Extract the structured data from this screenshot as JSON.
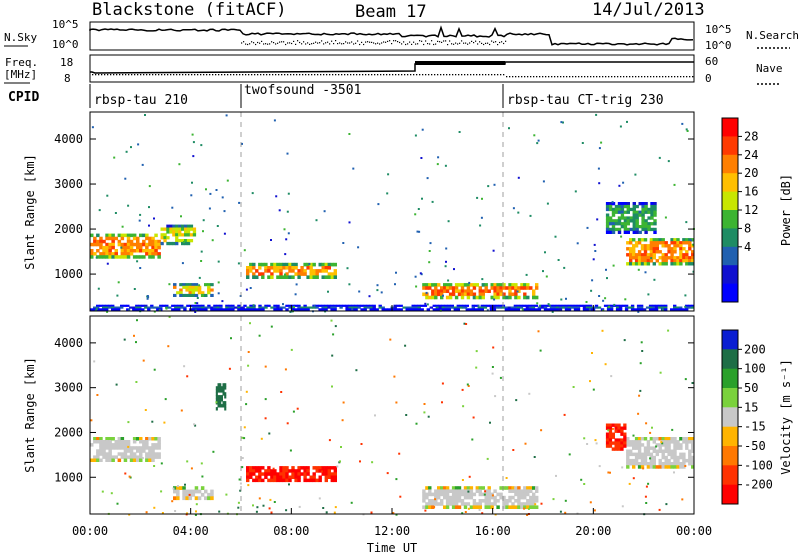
{
  "header": {
    "station": "Blackstone (fitACF)",
    "beam": "Beam 17",
    "date": "14/Jul/2013"
  },
  "noise_panel": {
    "left_label": "N.Sky",
    "right_label": "N.Search",
    "left_ticks": [
      "10^5",
      "10^0"
    ],
    "right_ticks": [
      "10^5",
      "10^0"
    ]
  },
  "freq_panel": {
    "left_label_1": "Freq.",
    "left_label_2": "[MHz]",
    "right_label": "Nave",
    "left_ticks": [
      "18",
      "8"
    ],
    "right_ticks": [
      "60",
      "0"
    ]
  },
  "cpid_panel": {
    "label": "CPID",
    "programs": [
      {
        "name": "rbsp-tau 210",
        "start_hour": 0
      },
      {
        "name": "twofsound -3501",
        "start_hour": 6
      },
      {
        "name": "rbsp-tau CT-trig 230",
        "start_hour": 16.5
      }
    ]
  },
  "axes": {
    "ylabel": "Slant Range [km]",
    "xlabel": "Time UT",
    "yticks": [
      "1000",
      "2000",
      "3000",
      "4000"
    ],
    "xticks": [
      "00:00",
      "04:00",
      "08:00",
      "12:00",
      "16:00",
      "20:00",
      "00:00"
    ]
  },
  "power_colorbar": {
    "label": "Power [dB]",
    "ticks": [
      "28",
      "24",
      "20",
      "16",
      "12",
      "8",
      "4"
    ],
    "colors": [
      "#ff0000",
      "#ff3a00",
      "#ff7f00",
      "#ffbf00",
      "#c8e600",
      "#3cb432",
      "#1e8c64",
      "#2060b0",
      "#1010d0",
      "#0000ff"
    ]
  },
  "velocity_colorbar": {
    "label": "Velocity [m s⁻¹]",
    "ticks": [
      "200",
      "100",
      "50",
      "15",
      "-15",
      "-50",
      "-100",
      "-200"
    ],
    "colors": [
      "#0a1ed2",
      "#1e6e46",
      "#2aa02a",
      "#7ad23c",
      "#c8c8c8",
      "#ffb400",
      "#ff7800",
      "#ff3200",
      "#ff0000"
    ]
  },
  "chart_data": [
    {
      "type": "heatmap",
      "title": "Power",
      "ylabel": "Slant Range [km]",
      "xlabel": "Time UT",
      "xlim": [
        0,
        24
      ],
      "ylim": [
        180,
        4600
      ],
      "colorbar_ticks": [
        4,
        8,
        12,
        16,
        20,
        24,
        28
      ],
      "echo_regions": [
        {
          "t0": 0.0,
          "t1": 2.8,
          "r0": 1350,
          "r1": 1900,
          "level": 24
        },
        {
          "t0": 2.8,
          "t1": 4.2,
          "r0": 1650,
          "r1": 2100,
          "level": 18
        },
        {
          "t0": 3.3,
          "t1": 4.9,
          "r0": 500,
          "r1": 800,
          "level": 20
        },
        {
          "t0": 6.2,
          "t1": 9.8,
          "r0": 900,
          "r1": 1250,
          "level": 24
        },
        {
          "t0": 13.2,
          "t1": 17.8,
          "r0": 450,
          "r1": 800,
          "level": 26
        },
        {
          "t0": 21.3,
          "t1": 24.0,
          "r0": 1200,
          "r1": 1800,
          "level": 24
        },
        {
          "t0": 20.5,
          "t1": 22.5,
          "r0": 1900,
          "r1": 2600,
          "level": 12
        },
        {
          "t0": 0.0,
          "t1": 24.0,
          "r0": 200,
          "r1": 320,
          "level": 8
        }
      ]
    },
    {
      "type": "heatmap",
      "title": "Velocity",
      "ylabel": "Slant Range [km]",
      "xlabel": "Time UT",
      "xlim": [
        0,
        24
      ],
      "ylim": [
        180,
        4600
      ],
      "colorbar_ticks": [
        -200,
        -100,
        -50,
        -15,
        15,
        50,
        100,
        200
      ],
      "echo_regions": [
        {
          "t0": 0.0,
          "t1": 2.8,
          "r0": 1350,
          "r1": 1900,
          "level": 0
        },
        {
          "t0": 3.3,
          "t1": 4.9,
          "r0": 500,
          "r1": 800,
          "level": 0
        },
        {
          "t0": 5.0,
          "t1": 5.4,
          "r0": 2500,
          "r1": 3100,
          "level": 150
        },
        {
          "t0": 6.2,
          "t1": 9.8,
          "r0": 900,
          "r1": 1250,
          "level": -200
        },
        {
          "t0": 13.2,
          "t1": 17.8,
          "r0": 300,
          "r1": 800,
          "level": 0
        },
        {
          "t0": 21.3,
          "t1": 24.0,
          "r0": 1200,
          "r1": 1900,
          "level": 0
        },
        {
          "t0": 20.5,
          "t1": 21.3,
          "r0": 1600,
          "r1": 2200,
          "level": -200
        }
      ]
    }
  ]
}
